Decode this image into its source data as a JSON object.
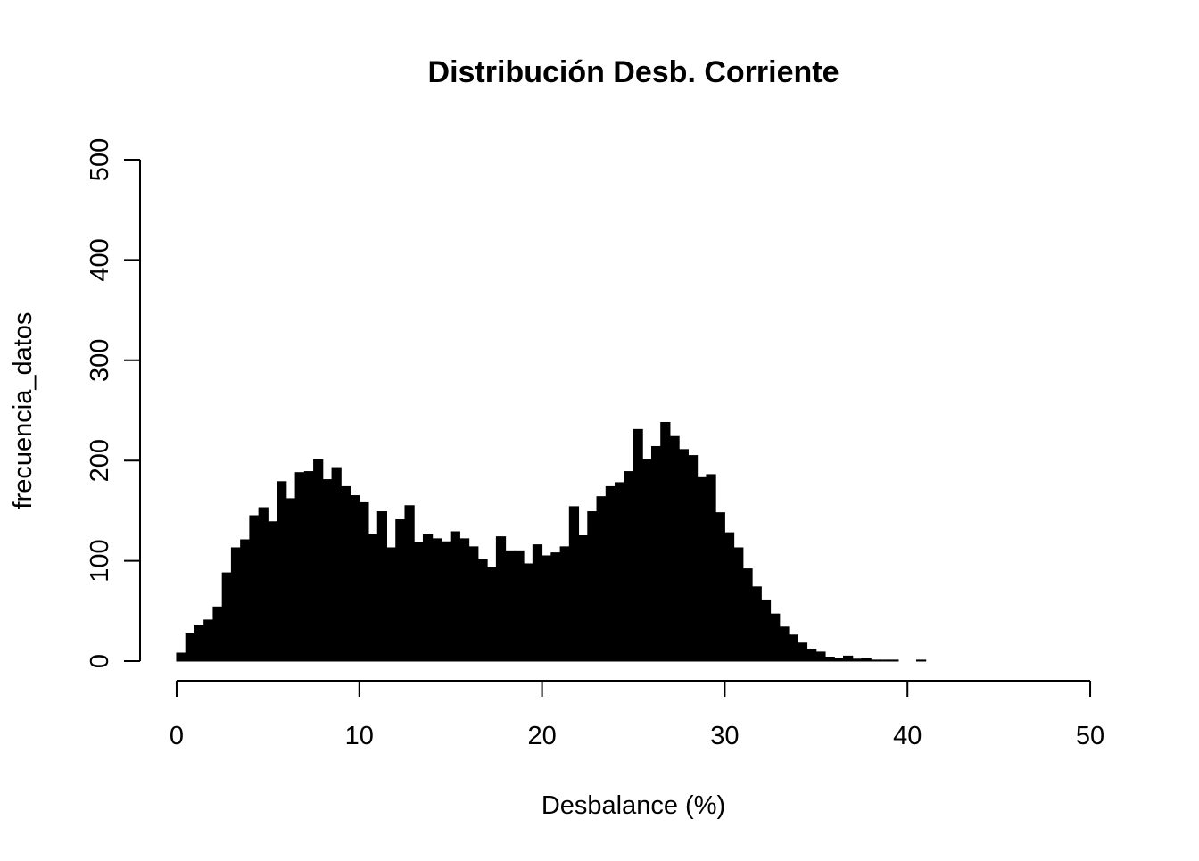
{
  "chart_data": {
    "type": "histogram",
    "title": "Distribución Desb. Corriente",
    "x_label": "Desbalance (%)",
    "y_label": "frecuencia_datos",
    "color": "#000000",
    "bins": [
      0,
      0.5,
      1,
      1.5,
      2,
      2.5,
      3,
      3.5,
      4,
      4.5,
      5,
      5.5,
      6,
      6.5,
      7,
      7.5,
      8,
      8.5,
      9,
      9.5,
      10,
      10.5,
      11,
      11.5,
      12,
      12.5,
      13,
      13.5,
      14,
      14.5,
      15,
      15.5,
      16,
      16.5,
      17,
      17.5,
      18,
      18.5,
      19,
      19.5,
      20,
      20.5,
      21,
      21.5,
      22,
      22.5,
      23,
      23.5,
      24,
      24.5,
      25,
      25.5,
      26,
      26.5,
      27,
      27.5,
      28,
      28.5,
      29,
      29.5,
      30,
      30.5,
      31,
      31.5,
      32,
      32.5,
      33,
      33.5,
      34,
      34.5,
      35,
      35.5,
      36,
      36.5,
      37,
      37.5,
      38,
      38.5,
      39,
      39.5,
      40,
      40.5,
      41,
      41.5,
      42,
      42.5,
      43,
      43.5,
      44,
      44.5,
      45,
      45.5,
      46,
      46.5,
      47,
      47.5,
      48,
      48.5,
      49,
      49.5,
      50,
      50.5,
      51,
      51.5,
      52
    ],
    "values": [
      8,
      28,
      36,
      41,
      54,
      88,
      113,
      121,
      145,
      153,
      139,
      179,
      162,
      188,
      189,
      201,
      181,
      193,
      174,
      165,
      158,
      126,
      149,
      113,
      141,
      155,
      118,
      126,
      122,
      119,
      129,
      122,
      114,
      101,
      93,
      124,
      110,
      110,
      97,
      116,
      105,
      108,
      114,
      154,
      125,
      149,
      164,
      174,
      178,
      189,
      231,
      201,
      214,
      238,
      224,
      211,
      205,
      183,
      186,
      148,
      128,
      113,
      92,
      74,
      61,
      47,
      34,
      26,
      18,
      12,
      9,
      4,
      3,
      5,
      2,
      3,
      1,
      1,
      1,
      0,
      0,
      1,
      0,
      0,
      0,
      0,
      0,
      0,
      0,
      0,
      0,
      0,
      0,
      0,
      0,
      0,
      0,
      0,
      0,
      0,
      0,
      0,
      0,
      0
    ],
    "xlim": [
      -2,
      52
    ],
    "ylim": [
      0,
      500
    ],
    "xticks": [
      0,
      10,
      20,
      30,
      40,
      50
    ],
    "yticks": [
      0,
      100,
      200,
      300,
      400,
      500
    ]
  }
}
